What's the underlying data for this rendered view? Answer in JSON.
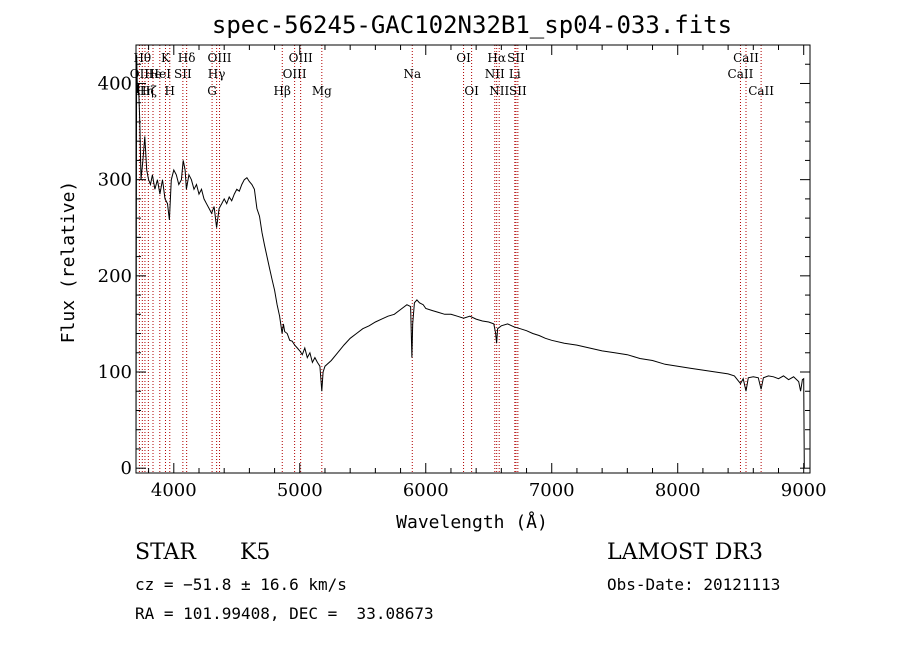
{
  "chart_data": {
    "type": "line",
    "title": "spec-56245-GAC102N32B1_sp04-033.fits",
    "xlabel": "Wavelength (Å)",
    "ylabel": "Flux (relative)",
    "xlim": [
      3700,
      9050
    ],
    "ylim": [
      -5,
      440
    ],
    "x_ticks": [
      4000,
      5000,
      6000,
      7000,
      8000,
      9000
    ],
    "y_ticks": [
      0,
      100,
      200,
      300,
      400
    ],
    "grid": false,
    "spectrum": {
      "name": "flux",
      "color": "#000000",
      "points": [
        [
          3700,
          0
        ],
        [
          3705,
          430
        ],
        [
          3712,
          390
        ],
        [
          3720,
          400
        ],
        [
          3730,
          360
        ],
        [
          3740,
          300
        ],
        [
          3755,
          320
        ],
        [
          3770,
          345
        ],
        [
          3785,
          310
        ],
        [
          3800,
          300
        ],
        [
          3815,
          295
        ],
        [
          3830,
          305
        ],
        [
          3850,
          290
        ],
        [
          3870,
          300
        ],
        [
          3890,
          285
        ],
        [
          3910,
          300
        ],
        [
          3930,
          280
        ],
        [
          3950,
          275
        ],
        [
          3965,
          258
        ],
        [
          3980,
          300
        ],
        [
          4000,
          310
        ],
        [
          4020,
          305
        ],
        [
          4040,
          295
        ],
        [
          4060,
          300
        ],
        [
          4075,
          320
        ],
        [
          4090,
          310
        ],
        [
          4100,
          290
        ],
        [
          4120,
          305
        ],
        [
          4140,
          300
        ],
        [
          4160,
          290
        ],
        [
          4180,
          295
        ],
        [
          4200,
          285
        ],
        [
          4220,
          290
        ],
        [
          4240,
          280
        ],
        [
          4260,
          275
        ],
        [
          4280,
          270
        ],
        [
          4300,
          265
        ],
        [
          4320,
          272
        ],
        [
          4340,
          250
        ],
        [
          4360,
          270
        ],
        [
          4380,
          275
        ],
        [
          4400,
          280
        ],
        [
          4420,
          275
        ],
        [
          4440,
          282
        ],
        [
          4460,
          278
        ],
        [
          4480,
          285
        ],
        [
          4500,
          290
        ],
        [
          4520,
          288
        ],
        [
          4540,
          295
        ],
        [
          4560,
          300
        ],
        [
          4580,
          302
        ],
        [
          4600,
          298
        ],
        [
          4620,
          295
        ],
        [
          4640,
          290
        ],
        [
          4660,
          270
        ],
        [
          4680,
          262
        ],
        [
          4700,
          245
        ],
        [
          4720,
          232
        ],
        [
          4740,
          220
        ],
        [
          4760,
          208
        ],
        [
          4780,
          196
        ],
        [
          4800,
          185
        ],
        [
          4820,
          170
        ],
        [
          4840,
          158
        ],
        [
          4860,
          140
        ],
        [
          4870,
          150
        ],
        [
          4880,
          142
        ],
        [
          4900,
          140
        ],
        [
          4920,
          133
        ],
        [
          4940,
          132
        ],
        [
          4960,
          128
        ],
        [
          4980,
          125
        ],
        [
          5000,
          122
        ],
        [
          5020,
          118
        ],
        [
          5040,
          125
        ],
        [
          5060,
          115
        ],
        [
          5080,
          120
        ],
        [
          5100,
          110
        ],
        [
          5120,
          115
        ],
        [
          5140,
          110
        ],
        [
          5160,
          106
        ],
        [
          5175,
          80
        ],
        [
          5185,
          100
        ],
        [
          5200,
          106
        ],
        [
          5250,
          112
        ],
        [
          5300,
          120
        ],
        [
          5350,
          128
        ],
        [
          5400,
          135
        ],
        [
          5450,
          140
        ],
        [
          5500,
          145
        ],
        [
          5550,
          148
        ],
        [
          5600,
          152
        ],
        [
          5650,
          155
        ],
        [
          5700,
          158
        ],
        [
          5750,
          160
        ],
        [
          5800,
          165
        ],
        [
          5850,
          170
        ],
        [
          5880,
          168
        ],
        [
          5890,
          115
        ],
        [
          5896,
          150
        ],
        [
          5910,
          172
        ],
        [
          5930,
          175
        ],
        [
          5950,
          172
        ],
        [
          5980,
          170
        ],
        [
          6000,
          166
        ],
        [
          6050,
          164
        ],
        [
          6100,
          162
        ],
        [
          6150,
          160
        ],
        [
          6200,
          160
        ],
        [
          6250,
          158
        ],
        [
          6300,
          156
        ],
        [
          6350,
          158
        ],
        [
          6400,
          155
        ],
        [
          6450,
          153
        ],
        [
          6500,
          152
        ],
        [
          6540,
          150
        ],
        [
          6555,
          140
        ],
        [
          6562,
          130
        ],
        [
          6570,
          145
        ],
        [
          6600,
          148
        ],
        [
          6650,
          150
        ],
        [
          6700,
          147
        ],
        [
          6750,
          145
        ],
        [
          6800,
          143
        ],
        [
          6850,
          140
        ],
        [
          6900,
          138
        ],
        [
          6950,
          135
        ],
        [
          7000,
          133
        ],
        [
          7100,
          130
        ],
        [
          7200,
          128
        ],
        [
          7300,
          125
        ],
        [
          7400,
          122
        ],
        [
          7500,
          120
        ],
        [
          7600,
          118
        ],
        [
          7700,
          114
        ],
        [
          7800,
          112
        ],
        [
          7900,
          108
        ],
        [
          8000,
          106
        ],
        [
          8100,
          104
        ],
        [
          8200,
          102
        ],
        [
          8300,
          100
        ],
        [
          8400,
          98
        ],
        [
          8450,
          96
        ],
        [
          8498,
          88
        ],
        [
          8520,
          93
        ],
        [
          8542,
          80
        ],
        [
          8560,
          94
        ],
        [
          8600,
          95
        ],
        [
          8640,
          94
        ],
        [
          8662,
          82
        ],
        [
          8680,
          94
        ],
        [
          8720,
          96
        ],
        [
          8760,
          95
        ],
        [
          8800,
          93
        ],
        [
          8840,
          96
        ],
        [
          8880,
          92
        ],
        [
          8920,
          95
        ],
        [
          8960,
          90
        ],
        [
          8975,
          80
        ],
        [
          8990,
          92
        ],
        [
          9000,
          93
        ],
        [
          9005,
          0
        ]
      ]
    },
    "spectral_lines": [
      {
        "wavelength": 3727,
        "label": "OII",
        "row": 2
      },
      {
        "wavelength": 3750,
        "label": "Hθ",
        "row": 1
      },
      {
        "wavelength": 3771,
        "label": "Hη",
        "row": 3
      },
      {
        "wavelength": 3798,
        "label": "Hζ",
        "row": 3
      },
      {
        "wavelength": 3835,
        "label": "He",
        "row": 2
      },
      {
        "wavelength": 3889,
        "label": "HeI",
        "row": 2
      },
      {
        "wavelength": 3934,
        "label": "K",
        "row": 1
      },
      {
        "wavelength": 3968,
        "label": "H",
        "row": 3
      },
      {
        "wavelength": 4072,
        "label": "SII",
        "row": 2
      },
      {
        "wavelength": 4102,
        "label": "Hδ",
        "row": 1
      },
      {
        "wavelength": 4304,
        "label": "G",
        "row": 3
      },
      {
        "wavelength": 4340,
        "label": "Hγ",
        "row": 2
      },
      {
        "wavelength": 4363,
        "label": "OIII",
        "row": 1
      },
      {
        "wavelength": 4861,
        "label": "Hβ",
        "row": 3
      },
      {
        "wavelength": 4959,
        "label": "OIII",
        "row": 2
      },
      {
        "wavelength": 5007,
        "label": "OIII",
        "row": 1
      },
      {
        "wavelength": 5175,
        "label": "Mg",
        "row": 3
      },
      {
        "wavelength": 5893,
        "label": "Na",
        "row": 2
      },
      {
        "wavelength": 6300,
        "label": "OI",
        "row": 1
      },
      {
        "wavelength": 6364,
        "label": "OI",
        "row": 3
      },
      {
        "wavelength": 6548,
        "label": "NII",
        "row": 2
      },
      {
        "wavelength": 6563,
        "label": "Hα",
        "row": 1
      },
      {
        "wavelength": 6583,
        "label": "NII",
        "row": 3
      },
      {
        "wavelength": 6707,
        "label": "Li",
        "row": 2
      },
      {
        "wavelength": 6716,
        "label": "SII",
        "row": 1
      },
      {
        "wavelength": 6731,
        "label": "SII",
        "row": 3
      },
      {
        "wavelength": 8498,
        "label": "CaII",
        "row": 2
      },
      {
        "wavelength": 8542,
        "label": "CaII",
        "row": 1
      },
      {
        "wavelength": 8662,
        "label": "CaII",
        "row": 3
      }
    ]
  },
  "info": {
    "class_label": "STAR",
    "subclass": "K5",
    "survey": "LAMOST DR3",
    "velocity": "cz = −51.8 ± 16.6 km/s",
    "obs_date": "Obs-Date: 20121113",
    "coords": "RA = 101.99408, DEC =  33.08673"
  }
}
